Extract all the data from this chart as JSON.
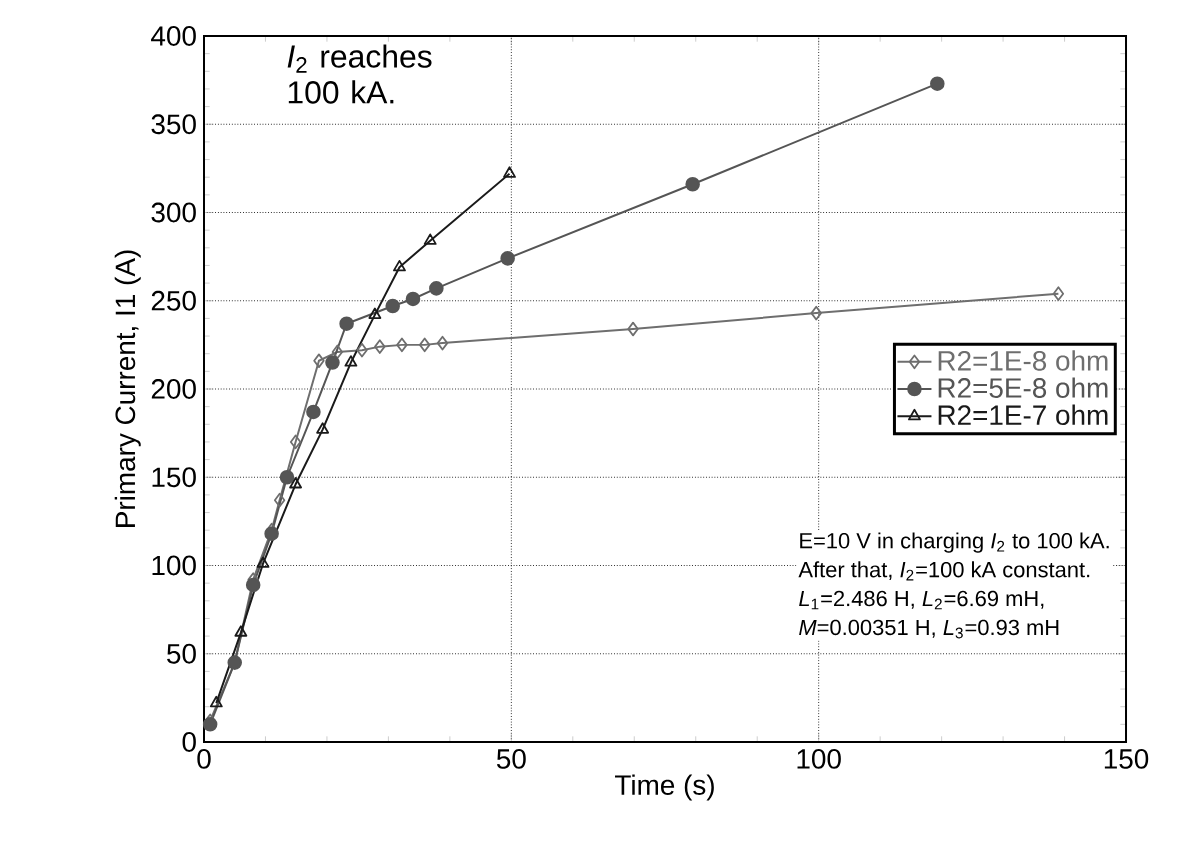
{
  "chart_data": {
    "type": "line",
    "xlabel": "Time (s)",
    "ylabel": "Primary Current, I1 (A)",
    "xlim": [
      0,
      150
    ],
    "ylim": [
      0,
      400
    ],
    "xticks": [
      0,
      50,
      100,
      150
    ],
    "yticks": [
      0,
      50,
      100,
      150,
      200,
      250,
      300,
      350,
      400
    ],
    "grid": true,
    "legend": "right",
    "series": [
      {
        "name": "R2=1E-8 ohm",
        "color": "#6e6e6e",
        "marker": "diamond",
        "x": [
          1,
          5,
          8,
          11,
          12.3,
          14.9,
          18.7,
          21.7,
          25.7,
          28.6,
          32.2,
          35.9,
          38.8,
          69.8,
          99.6,
          139
        ],
        "values": [
          12,
          45,
          92,
          120,
          137,
          170,
          216,
          221,
          222,
          224,
          225,
          225,
          226,
          234,
          243,
          254
        ]
      },
      {
        "name": "R2=5E-8 ohm",
        "color": "#555555",
        "marker": "circle",
        "x": [
          1,
          5,
          8,
          11,
          13.5,
          17.8,
          20.9,
          23.2,
          30.7,
          34,
          37.8,
          49.4,
          79.5,
          119.3
        ],
        "values": [
          10,
          45,
          89,
          118,
          150,
          187,
          215,
          237,
          247,
          251,
          257,
          274,
          316,
          373
        ]
      },
      {
        "name": "R2=1E-7 ohm",
        "color": "#1a1a1a",
        "marker": "triangle",
        "x": [
          2,
          6,
          9.6,
          14.9,
          19.3,
          23.9,
          27.8,
          31.8,
          36.8,
          49.7
        ],
        "values": [
          22,
          62,
          101,
          146,
          177,
          215,
          242,
          269,
          284,
          322
        ]
      }
    ],
    "annotations": [
      "*I*$_{2}$ reaches 100 kA.",
      "E=10 V in charging *I*$_{2}$ to 100 kA.",
      "After that,  *I*$_{2}$=100 kA constant.",
      "*L*$_{1}$=2.486 H, *L*$_{2}$=6.69 mH,",
      "*M*=0.00351 H, *L*$_{3}$=0.93 mH"
    ]
  }
}
